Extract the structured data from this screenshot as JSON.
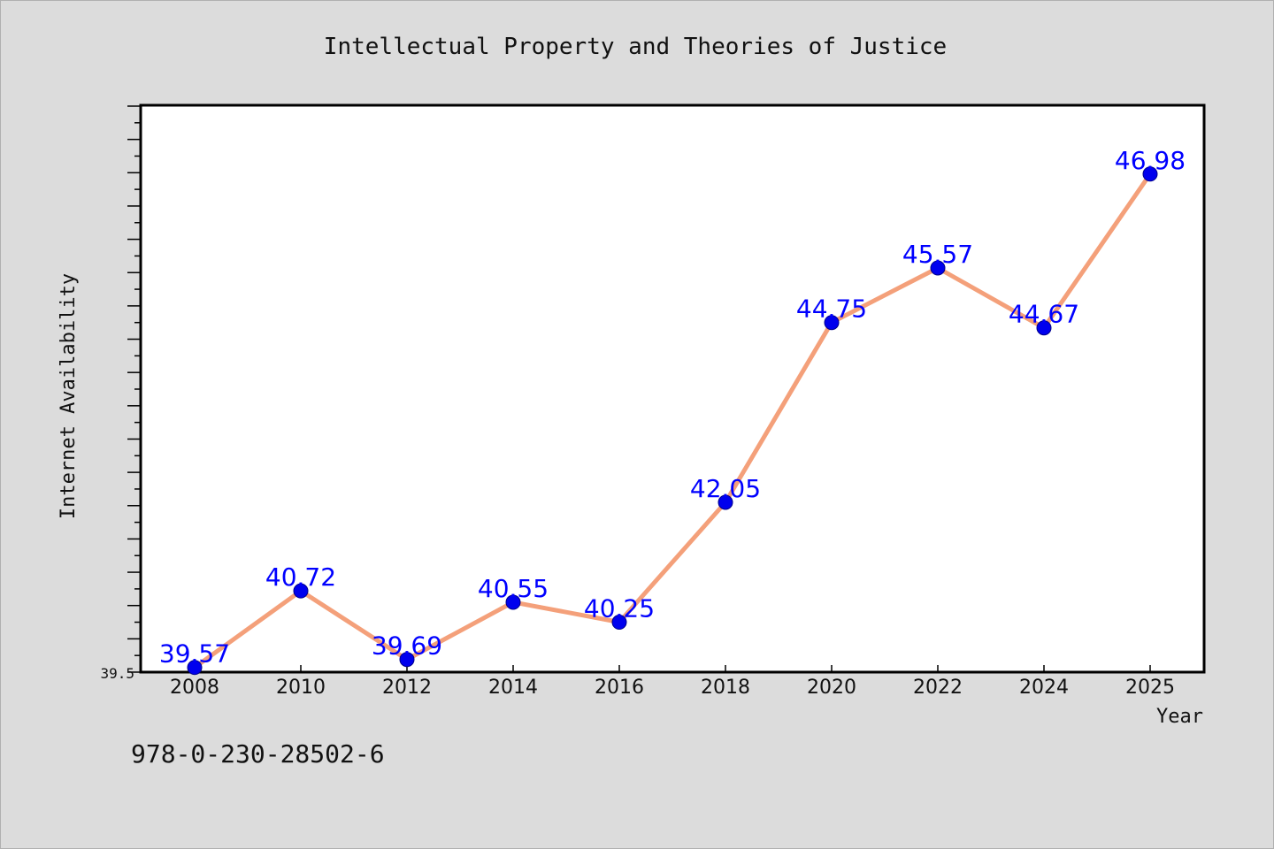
{
  "chart_data": {
    "type": "line",
    "title": "Intellectual Property and Theories of Justice",
    "xlabel": "Year",
    "ylabel": "Internet Availability",
    "categories": [
      "2008",
      "2010",
      "2012",
      "2014",
      "2016",
      "2018",
      "2020",
      "2022",
      "2024",
      "2025"
    ],
    "series": [
      {
        "values": [
          39.57,
          40.72,
          39.69,
          40.55,
          40.25,
          42.05,
          44.75,
          45.57,
          44.67,
          46.98
        ]
      }
    ],
    "data_labels": [
      "39.57",
      "40.72",
      "39.69",
      "40.55",
      "40.25",
      "42.05",
      "44.75",
      "45.57",
      "44.67",
      "46.98"
    ],
    "ytick_label": "39.5",
    "ylim": [
      39.5,
      48.0
    ],
    "grid": false,
    "legend": "none",
    "colors": {
      "line": "#f4a07a",
      "marker": "#0000ee",
      "label": "#0000ff",
      "background": "#dcdcdc",
      "plot_bg": "#ffffff"
    }
  },
  "footer_text": "978-0-230-28502-6"
}
